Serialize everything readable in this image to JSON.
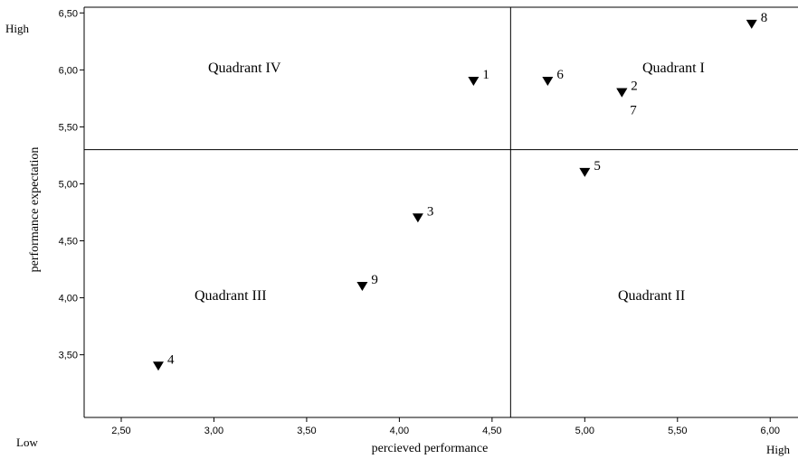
{
  "chart_data": {
    "type": "scatter",
    "title": "",
    "xlabel": "percieved performance",
    "ylabel": "performance expectation",
    "xlim": [
      2.3,
      6.15
    ],
    "ylim": [
      2.95,
      6.55
    ],
    "xticks": [
      "2,50",
      "3,00",
      "3,50",
      "4,00",
      "4,50",
      "5,00",
      "5,50",
      "6,00"
    ],
    "xtick_values": [
      2.5,
      3.0,
      3.5,
      4.0,
      4.5,
      5.0,
      5.5,
      6.0
    ],
    "yticks": [
      "3,50",
      "4,00",
      "4,50",
      "5,00",
      "5,50",
      "6,00",
      "6,50"
    ],
    "ytick_values": [
      3.5,
      4.0,
      4.5,
      5.0,
      5.5,
      6.0,
      6.5
    ],
    "divider_x": 4.6,
    "divider_y": 5.3,
    "marker": "filled-down-triangle",
    "grid": false,
    "points": [
      {
        "label": "1",
        "x": 4.4,
        "y": 5.9
      },
      {
        "label": "2",
        "x": 5.2,
        "y": 5.8
      },
      {
        "label": "3",
        "x": 4.1,
        "y": 4.7
      },
      {
        "label": "4",
        "x": 2.7,
        "y": 3.4
      },
      {
        "label": "5",
        "x": 5.0,
        "y": 5.1
      },
      {
        "label": "6",
        "x": 4.8,
        "y": 5.9
      },
      {
        "label": "7",
        "x": 5.2,
        "y": 5.8
      },
      {
        "label": "8",
        "x": 5.9,
        "y": 6.4
      },
      {
        "label": "9",
        "x": 3.8,
        "y": 4.1
      }
    ],
    "quadrants": {
      "q1": "Quadrant I",
      "q2": "Quadrant II",
      "q3": "Quadrant III",
      "q4": "Quadrant IV"
    },
    "corner_labels": {
      "y_high": "High",
      "low": "Low",
      "x_high": "High"
    }
  }
}
